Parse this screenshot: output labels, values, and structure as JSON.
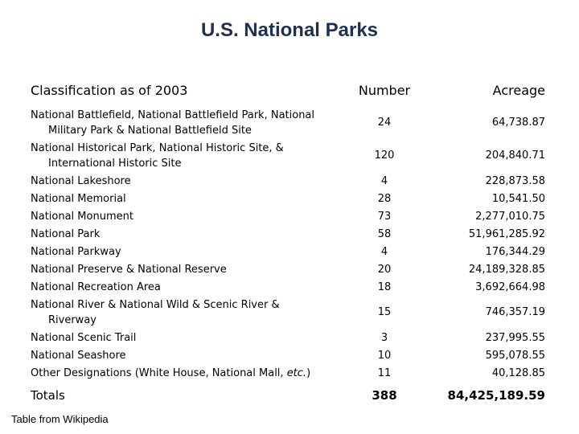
{
  "title": "U.S. National Parks",
  "headers": {
    "classification": "Classification as of 2003",
    "number": "Number",
    "acreage": "Acreage"
  },
  "rows": [
    {
      "line1": "National Battlefield, National Battlefield Park, National",
      "line2": "Military Park & National Battlefield Site",
      "number": "24",
      "acreage": "64,738.87"
    },
    {
      "line1": "National Historical Park, National Historic Site, &",
      "line2": "International Historic Site",
      "number": "120",
      "acreage": "204,840.71"
    },
    {
      "line1": "National Lakeshore",
      "number": "4",
      "acreage": "228,873.58"
    },
    {
      "line1": "National Memorial",
      "number": "28",
      "acreage": "10,541.50"
    },
    {
      "line1": "National Monument",
      "number": "73",
      "acreage": "2,277,010.75"
    },
    {
      "line1": "National Park",
      "number": "58",
      "acreage": "51,961,285.92"
    },
    {
      "line1": "National Parkway",
      "number": "4",
      "acreage": "176,344.29"
    },
    {
      "line1": "National Preserve & National Reserve",
      "number": "20",
      "acreage": "24,189,328.85"
    },
    {
      "line1": "National Recreation Area",
      "number": "18",
      "acreage": "3,692,664.98"
    },
    {
      "line1": "National River & National Wild & Scenic River &",
      "line2": "Riverway",
      "number": "15",
      "acreage": "746,357.19"
    },
    {
      "line1": "National Scenic Trail",
      "number": "3",
      "acreage": "237,995.55"
    },
    {
      "line1": "National Seashore",
      "number": "10",
      "acreage": "595,078.55"
    },
    {
      "line1_pre": "Other Designations (White House, National Mall, ",
      "line1_em": "etc.",
      "line1_post": ")",
      "number": "11",
      "acreage": "40,128.85"
    }
  ],
  "totals": {
    "label": "Totals",
    "number": "388",
    "acreage": "84,425,189.59"
  },
  "footer": "Table from Wikipedia"
}
